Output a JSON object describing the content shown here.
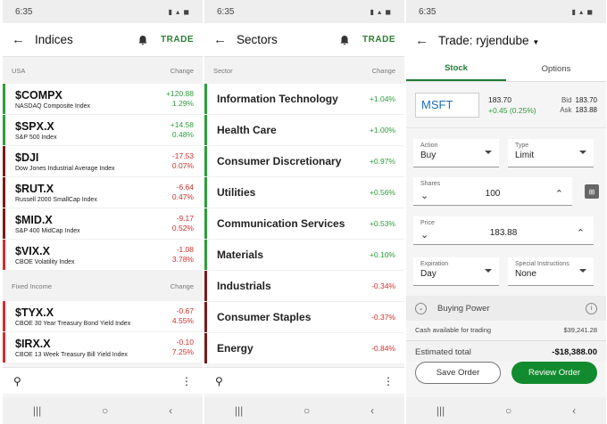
{
  "status": {
    "time": "6:35"
  },
  "nav": {
    "recents": "|||",
    "home": "○",
    "back": "‹"
  },
  "indices": {
    "title": "Indices",
    "trade": "TRADE",
    "section_usa": "USA",
    "section_fixed": "Fixed Income",
    "change_label": "Change",
    "usa": [
      {
        "symbol": "$COMPX",
        "name": "NASDAQ Composite Index",
        "change": "+120.88",
        "pct": "1.29%",
        "dir": "pos"
      },
      {
        "symbol": "$SPX.X",
        "name": "S&P 500 Index",
        "change": "+14.58",
        "pct": "0.48%",
        "dir": "pos"
      },
      {
        "symbol": "$DJI",
        "name": "Dow Jones Industrial Average Index",
        "change": "-17.53",
        "pct": "0.07%",
        "dir": "neg"
      },
      {
        "symbol": "$RUT.X",
        "name": "Russell 2000 SmallCap Index",
        "change": "-6.64",
        "pct": "0.47%",
        "dir": "neg"
      },
      {
        "symbol": "$MID.X",
        "name": "S&P 400 MidCap Index",
        "change": "-9.17",
        "pct": "0.52%",
        "dir": "neg"
      },
      {
        "symbol": "$VIX.X",
        "name": "CBOE Volatility Index",
        "change": "-1.08",
        "pct": "3.78%",
        "dir": "neg"
      }
    ],
    "fixed": [
      {
        "symbol": "$TYX.X",
        "name": "CBOE 30 Year Treasury Bond Yield Index",
        "change": "-0.67",
        "pct": "4.55%",
        "dir": "neg"
      },
      {
        "symbol": "$IRX.X",
        "name": "CBOE 13 Week Treasury Bill Yield Index",
        "change": "-0.10",
        "pct": "7.25%",
        "dir": "neg"
      }
    ]
  },
  "sectors": {
    "title": "Sectors",
    "trade": "TRADE",
    "header_sector": "Sector",
    "header_change": "Change",
    "items": [
      {
        "name": "Information Technology",
        "change": "+1.04%",
        "dir": "pos"
      },
      {
        "name": "Health Care",
        "change": "+1.00%",
        "dir": "pos"
      },
      {
        "name": "Consumer Discretionary",
        "change": "+0.97%",
        "dir": "pos"
      },
      {
        "name": "Utilities",
        "change": "+0.56%",
        "dir": "pos"
      },
      {
        "name": "Communication Services",
        "change": "+0.53%",
        "dir": "pos"
      },
      {
        "name": "Materials",
        "change": "+0.10%",
        "dir": "pos"
      },
      {
        "name": "Industrials",
        "change": "-0.34%",
        "dir": "neg"
      },
      {
        "name": "Consumer Staples",
        "change": "-0.37%",
        "dir": "neg"
      },
      {
        "name": "Energy",
        "change": "-0.84%",
        "dir": "neg"
      }
    ]
  },
  "trade": {
    "title": "Trade: ryjendube",
    "tab_stock": "Stock",
    "tab_options": "Options",
    "symbol": "MSFT",
    "last": "183.70",
    "change": "+0.45 (0.25%)",
    "bid_label": "Bid",
    "bid": "183.70",
    "ask_label": "Ask",
    "ask": "183.88",
    "action_label": "Action",
    "action": "Buy",
    "type_label": "Type",
    "type": "Limit",
    "shares_label": "Shares",
    "shares": "100",
    "price_label": "Price",
    "price": "183.88",
    "expiration_label": "Expiration",
    "expiration": "Day",
    "special_label": "Special Instructions",
    "special": "None",
    "buying_power": "Buying Power",
    "cash_label": "Cash available for trading",
    "cash": "$39,241.28",
    "est_label": "Estimated total",
    "est": "-$18,388.00",
    "save": "Save Order",
    "review": "Review Order"
  },
  "colors": {
    "green": "#2e9e3a",
    "red": "#d32f2f",
    "accent": "#128a2e"
  }
}
